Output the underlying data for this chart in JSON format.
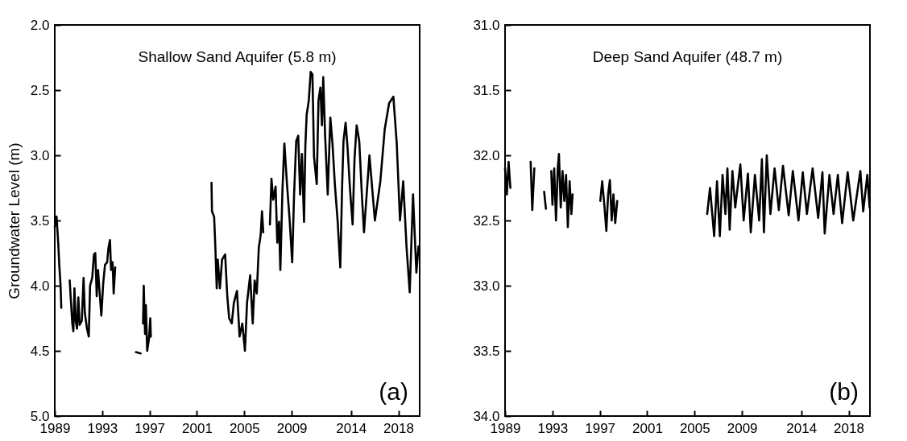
{
  "chart_data": [
    {
      "type": "line",
      "title": "Shallow Sand Aquifer (5.8 m)",
      "ylabel": "Groundwater Level (m)",
      "annotations": [
        "(a)"
      ],
      "xlim": [
        1989,
        2019.8
      ],
      "xticks": [
        1989,
        1993,
        1997,
        2001,
        2005,
        2009,
        2014,
        2018
      ],
      "ylim": [
        5,
        2
      ],
      "yticks": [
        {
          "value": 2,
          "label": "2.0"
        },
        {
          "value": 2.5,
          "label": "2.5"
        },
        {
          "value": 3,
          "label": "3.0"
        },
        {
          "value": 3.5,
          "label": "3.5"
        },
        {
          "value": 4,
          "label": "4.0"
        },
        {
          "value": 4.5,
          "label": "4.5"
        },
        {
          "value": 5,
          "label": "5.0"
        }
      ],
      "series": [
        {
          "color": "#000000",
          "x": [
            1989.0,
            1989.15,
            1989.29,
            1989.38,
            1989.49,
            1989.55,
            1989.9,
            1990.26,
            1990.35,
            1990.48,
            1990.57,
            1990.66,
            1990.77,
            1990.88,
            1990.99,
            1991.1,
            1991.28,
            1991.43,
            1991.54,
            1991.72,
            1991.87,
            1991.98,
            1992.16,
            1992.31,
            1992.42,
            1992.54,
            1992.65,
            1992.93,
            1993.09,
            1993.24,
            1993.42,
            1993.53,
            1993.66,
            1993.75,
            1993.88,
            1993.97,
            1994.1,
            1995.0,
            1995.85,
            1996.25,
            1996.35,
            1996.45,
            1996.51,
            1996.62,
            1996.69,
            1996.8,
            1996.95,
            1997.06,
            1997.11,
            1999.5,
            2002.23,
            2002.27,
            2002.45,
            2002.54,
            2002.67,
            2002.76,
            2002.94,
            2003.12,
            2003.38,
            2003.56,
            2003.72,
            2003.94,
            2004.12,
            2004.38,
            2004.6,
            2004.83,
            2005.05,
            2005.23,
            2005.49,
            2005.71,
            2005.87,
            2006.05,
            2006.22,
            2006.38,
            2006.49,
            2006.6,
            2006.9,
            2007.16,
            2007.29,
            2007.44,
            2007.64,
            2007.78,
            2007.93,
            2008.04,
            2008.22,
            2008.38,
            2008.6,
            2008.82,
            2009.04,
            2009.2,
            2009.38,
            2009.55,
            2009.71,
            2009.86,
            2010.04,
            2010.15,
            2010.26,
            2010.44,
            2010.6,
            2010.75,
            2010.88,
            2011.11,
            2011.26,
            2011.42,
            2011.55,
            2011.66,
            2011.82,
            2012.04,
            2012.26,
            2012.44,
            2012.64,
            2012.88,
            2013.1,
            2013.26,
            2013.37,
            2013.55,
            2013.72,
            2013.92,
            2014.14,
            2014.3,
            2014.48,
            2014.7,
            2014.92,
            2015.1,
            2015.56,
            2016.02,
            2016.48,
            2016.85,
            2017.22,
            2017.58,
            2017.86,
            2018.14,
            2018.41,
            2018.69,
            2018.96,
            2019.24,
            2019.52,
            2019.7
          ],
          "values": [
            3.55,
            3.47,
            3.67,
            3.84,
            4.0,
            4.17,
            null,
            3.96,
            4.1,
            4.29,
            4.35,
            4.02,
            4.27,
            4.33,
            4.09,
            4.3,
            4.27,
            3.94,
            4.21,
            4.33,
            4.39,
            4.0,
            3.94,
            3.76,
            3.75,
            4.08,
            3.88,
            4.23,
            3.98,
            3.84,
            3.82,
            3.71,
            3.65,
            3.88,
            3.82,
            4.06,
            3.86,
            null,
            4.51,
            4.52,
            null,
            4.29,
            4.0,
            4.37,
            4.15,
            4.5,
            4.41,
            4.25,
            4.39,
            null,
            3.21,
            3.43,
            3.47,
            3.67,
            4.02,
            3.8,
            4.02,
            3.8,
            3.76,
            4.08,
            4.25,
            4.29,
            4.13,
            4.04,
            4.39,
            4.29,
            4.5,
            4.13,
            3.92,
            4.29,
            3.96,
            4.06,
            3.71,
            3.61,
            3.43,
            3.59,
            null,
            3.53,
            3.18,
            3.34,
            3.24,
            3.67,
            3.51,
            3.88,
            3.26,
            2.91,
            3.22,
            3.49,
            3.82,
            3.3,
            2.89,
            2.85,
            3.3,
            2.99,
            3.51,
            2.93,
            2.69,
            2.58,
            2.36,
            2.38,
            3.01,
            3.22,
            2.58,
            2.48,
            2.77,
            2.4,
            2.85,
            3.3,
            2.71,
            2.91,
            3.22,
            3.51,
            3.86,
            3.22,
            2.89,
            2.75,
            2.95,
            3.26,
            3.53,
            3.03,
            2.77,
            2.89,
            3.3,
            3.59,
            3.0,
            3.5,
            3.2,
            2.8,
            2.6,
            2.55,
            2.9,
            3.5,
            3.2,
            3.7,
            4.05,
            3.3,
            3.9,
            3.7
          ]
        }
      ]
    },
    {
      "type": "line",
      "title": "Deep Sand Aquifer (48.7 m)",
      "annotations": [
        "(b)"
      ],
      "xlim": [
        1989,
        2019.8
      ],
      "xticks": [
        1989,
        1993,
        1997,
        2001,
        2005,
        2009,
        2014,
        2018
      ],
      "ylim": [
        34,
        31
      ],
      "yticks": [
        {
          "value": 31,
          "label": "31.0"
        },
        {
          "value": 31.5,
          "label": "31.5"
        },
        {
          "value": 32,
          "label": "32.0"
        },
        {
          "value": 32.5,
          "label": "32.5"
        },
        {
          "value": 33,
          "label": "33.0"
        },
        {
          "value": 33.5,
          "label": "33.5"
        },
        {
          "value": 34,
          "label": "34.0"
        }
      ],
      "series": [
        {
          "color": "#000000",
          "x": [
            1989.0,
            1989.15,
            1989.3,
            1989.45,
            1990.3,
            1991.16,
            1991.3,
            1991.47,
            1991.9,
            1992.3,
            1992.45,
            1992.7,
            1992.9,
            1993.0,
            1993.15,
            1993.3,
            1993.45,
            1993.55,
            1993.7,
            1993.85,
            1994.0,
            1994.15,
            1994.3,
            1994.45,
            1994.6,
            1994.7,
            1996.0,
            1997.04,
            1997.2,
            1997.4,
            1997.55,
            1997.7,
            1997.85,
            1998.0,
            1998.15,
            1998.3,
            1998.47,
            2002.0,
            2006.06,
            2006.3,
            2006.65,
            2006.89,
            2007.13,
            2007.36,
            2007.6,
            2007.77,
            2007.96,
            2008.19,
            2008.43,
            2008.86,
            2009.14,
            2009.5,
            2009.74,
            2010.09,
            2010.45,
            2010.68,
            2010.85,
            2011.09,
            2011.4,
            2011.75,
            2012.11,
            2012.46,
            2012.94,
            2013.29,
            2013.77,
            2014.13,
            2014.48,
            2014.96,
            2015.43,
            2015.79,
            2015.98,
            2016.38,
            2016.73,
            2017.09,
            2017.45,
            2017.92,
            2018.39,
            2018.99,
            2019.23,
            2019.58,
            2019.77
          ],
          "values": [
            32.1,
            32.3,
            32.05,
            32.25,
            null,
            32.05,
            32.42,
            32.1,
            null,
            32.28,
            32.41,
            null,
            32.12,
            32.38,
            32.1,
            32.5,
            32.1,
            31.99,
            32.4,
            32.12,
            32.35,
            32.15,
            32.55,
            32.2,
            32.45,
            32.3,
            null,
            32.35,
            32.2,
            32.4,
            32.58,
            32.3,
            32.19,
            32.5,
            32.3,
            32.52,
            32.35,
            null,
            32.45,
            32.25,
            32.62,
            32.2,
            32.62,
            32.15,
            32.45,
            32.1,
            32.57,
            32.12,
            32.4,
            32.07,
            32.5,
            32.14,
            32.59,
            32.15,
            32.5,
            32.03,
            32.59,
            32.0,
            32.45,
            32.1,
            32.42,
            32.08,
            32.46,
            32.12,
            32.5,
            32.13,
            32.45,
            32.1,
            32.48,
            32.13,
            32.6,
            32.15,
            32.45,
            32.15,
            32.52,
            32.13,
            32.5,
            32.12,
            32.43,
            32.15,
            32.4
          ]
        }
      ]
    }
  ]
}
